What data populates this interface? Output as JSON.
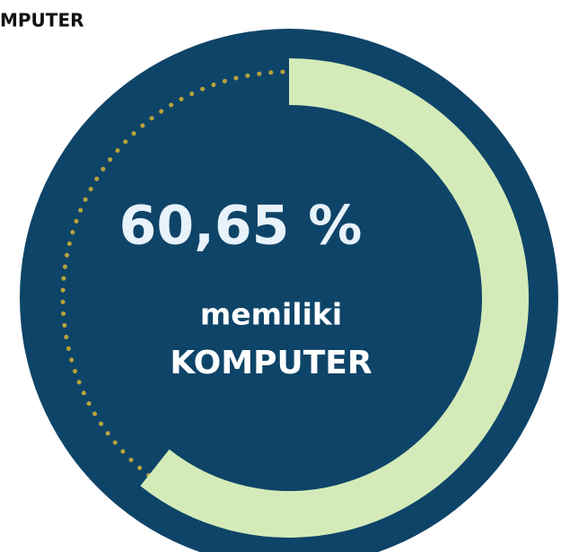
{
  "chart_data": {
    "type": "donut",
    "title": "MPUTER",
    "values": [
      60.65
    ],
    "value_labels": [
      "60,65 %"
    ],
    "annotations": [
      "memiliki",
      "KOMPUTER"
    ],
    "ylim": [
      0,
      100
    ],
    "color": "#d4ebb9",
    "background_color": "#0e4468",
    "track_color": "#b8a33b"
  }
}
